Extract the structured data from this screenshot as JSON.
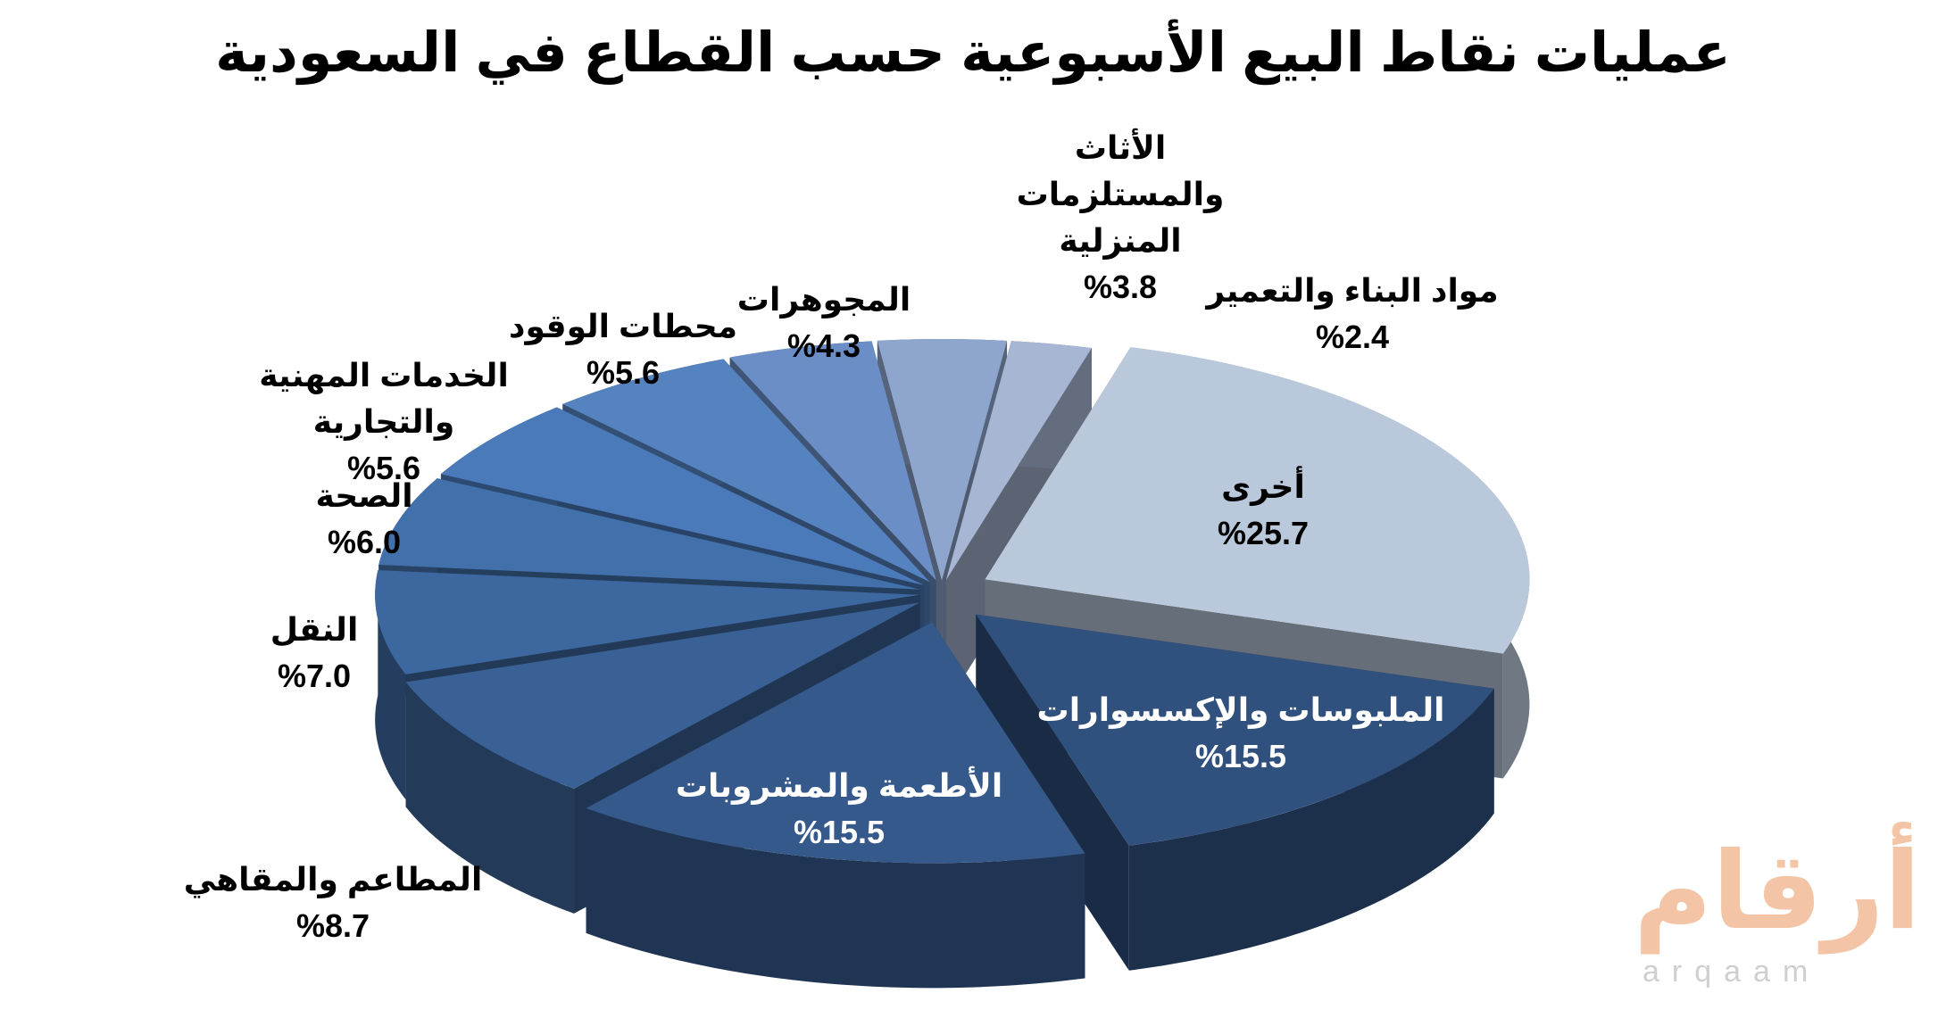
{
  "chart_data": {
    "type": "pie3d",
    "title": "عمليات نقاط البيع الأسبوعية حسب القطاع في السعودية",
    "categories": [
      "مواد البناء والتعمير",
      "أخرى",
      "الملبوسات والإكسسوارات",
      "الأطعمة والمشروبات",
      "المطاعم والمقاهي",
      "النقل",
      "الصحة",
      "الخدمات المهنية والتجارية",
      "محطات الوقود",
      "المجوهرات",
      "الأثاث والمستلزمات المنزلية"
    ],
    "values": [
      2.4,
      25.7,
      15.5,
      15.5,
      8.7,
      7.0,
      6.0,
      5.6,
      5.6,
      4.3,
      3.8
    ],
    "value_labels": [
      "%2.4",
      "%25.7",
      "%15.5",
      "%15.5",
      "%8.7",
      "%7.0",
      "%6.0",
      "%5.6",
      "%5.6",
      "%4.3",
      "%3.8"
    ],
    "colors": [
      "#a7b6d2",
      "#bac8dc",
      "#30507d",
      "#35598b",
      "#3a6195",
      "#3d679f",
      "#4270aa",
      "#4a7aba",
      "#5583c0",
      "#6a8ec5",
      "#8ea6cd"
    ]
  },
  "logo": {
    "arabic": "أرقام",
    "latin": "arqaam"
  }
}
